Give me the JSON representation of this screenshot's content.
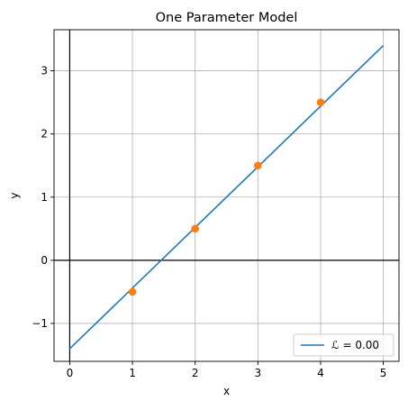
{
  "chart_data": {
    "type": "line",
    "title": "One Parameter Model",
    "xlabel": "x",
    "ylabel": "y",
    "xlim": [
      -0.25,
      5.25
    ],
    "ylim": [
      -1.6,
      3.65
    ],
    "xticks": [
      0,
      1,
      2,
      3,
      4,
      5
    ],
    "xtick_labels": [
      "0",
      "1",
      "2",
      "3",
      "4",
      "5"
    ],
    "yticks": [
      -1,
      0,
      1,
      2,
      3
    ],
    "ytick_labels": [
      "−1",
      "0",
      "1",
      "2",
      "3"
    ],
    "grid": true,
    "reference_lines": {
      "x": 0,
      "y": 0
    },
    "series": [
      {
        "name": "ℒ = 0.00",
        "kind": "line",
        "color": "#1f77b4",
        "x": [
          0,
          5
        ],
        "y": [
          -1.4,
          3.4
        ]
      },
      {
        "kind": "scatter",
        "color": "#ff7f0e",
        "x": [
          1,
          2,
          3,
          4
        ],
        "y": [
          -0.5,
          0.5,
          1.5,
          2.5
        ]
      }
    ],
    "legend": {
      "position": "lower-right",
      "entries": [
        "ℒ = 0.00"
      ]
    }
  }
}
